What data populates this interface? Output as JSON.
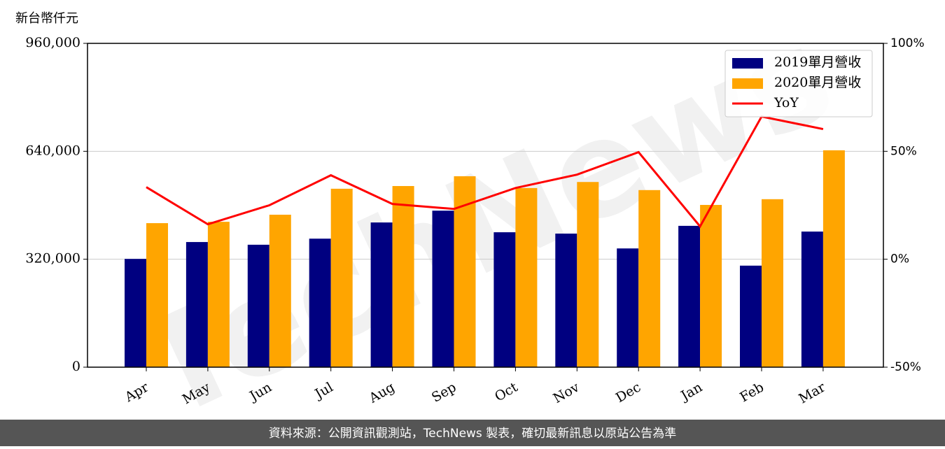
{
  "chart_data": {
    "type": "bar_line",
    "y_label": "新台幣仟元",
    "watermark": "TechNews",
    "footer": "資料來源：公開資訊觀測站，TechNews 製表，確切最新訊息以原站公告為準",
    "categories": [
      "Apr",
      "May",
      "Jun",
      "Jul",
      "Aug",
      "Sep",
      "Oct",
      "Nov",
      "Dec",
      "Jan",
      "Feb",
      "Mar"
    ],
    "series": [
      {
        "name": "2019單月營收",
        "color": "#000080",
        "type": "bar",
        "values": [
          321000,
          371000,
          363000,
          381000,
          429000,
          464000,
          400000,
          396000,
          352000,
          419000,
          301000,
          402000
        ]
      },
      {
        "name": "2020單月營收",
        "color": "#ffa500",
        "type": "bar",
        "values": [
          427000,
          431000,
          452000,
          529000,
          537000,
          566000,
          531000,
          549000,
          525000,
          481000,
          498000,
          643000
        ]
      },
      {
        "name": "YoY",
        "color": "#ff0000",
        "type": "line",
        "axis": "y2",
        "values": [
          33.4,
          16.2,
          25,
          38.9,
          25.6,
          23.3,
          33,
          39.2,
          49.6,
          15.2,
          66.1,
          60.3
        ]
      }
    ],
    "ylim": [
      0,
      960000
    ],
    "yticks": [
      0,
      {
        "value": 320000,
        "label": "320,000"
      },
      {
        "value": 640000,
        "label": "640,000"
      },
      {
        "value": 960000,
        "label": "960,000"
      }
    ],
    "y2lim": [
      -50,
      100
    ],
    "y2ticks": [
      {
        "value": -50,
        "label": "-50%"
      },
      {
        "value": 0,
        "label": "0%"
      },
      {
        "value": 50,
        "label": "50%"
      },
      {
        "value": 100,
        "label": "100%"
      }
    ],
    "grid": true,
    "legend": "upper right"
  }
}
